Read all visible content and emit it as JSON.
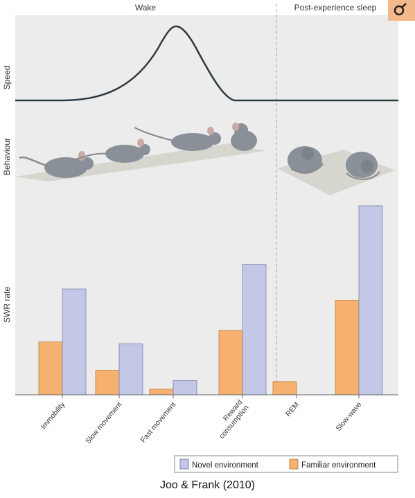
{
  "panel": {
    "wake_label": "Wake",
    "sleep_label": "Post-experience sleep",
    "speed_label": "Speed",
    "behaviour_label": "Behaviour",
    "swr_label": "SWR rate"
  },
  "chart_data": {
    "type": "bar",
    "title": "",
    "ylabel": "SWR rate",
    "xlabel": "",
    "categories": [
      "Immobility",
      "Slow movement",
      "Fast movement",
      "Reward\nconsumption",
      "REM",
      "Slow-wave"
    ],
    "series": [
      {
        "name": "Familiar environment",
        "color": "#f6b070",
        "values": [
          28,
          13,
          3,
          34,
          7,
          50
        ]
      },
      {
        "name": "Novel environment",
        "color": "#c3c8e6",
        "values": [
          56,
          27,
          7.5,
          69,
          0,
          100
        ]
      }
    ],
    "ylim": [
      0,
      100
    ],
    "grid": false,
    "legend_position": "bottom-right"
  },
  "caption": "Joo & Frank (2010)",
  "colors": {
    "background": "#ececec",
    "line": "#2d3a42",
    "divider": "#999999",
    "accent_logo": "#f2b98d"
  },
  "icons": [
    "journal-logo-icon",
    "mouse-icon"
  ]
}
